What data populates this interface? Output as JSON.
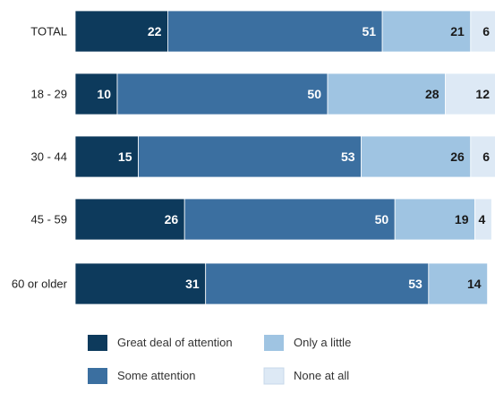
{
  "chart_data": {
    "type": "bar",
    "orientation": "horizontal",
    "stacked": true,
    "categories": [
      "TOTAL",
      "18 - 29",
      "30 - 44",
      "45 - 59",
      "60 or older"
    ],
    "series": [
      {
        "name": "Great deal of attention",
        "values": [
          22,
          10,
          15,
          26,
          31
        ],
        "color": "#0d3a5c",
        "label_color": "#ffffff"
      },
      {
        "name": "Some attention",
        "values": [
          51,
          50,
          53,
          50,
          53
        ],
        "color": "#3b6fa0",
        "label_color": "#ffffff"
      },
      {
        "name": "Only a little",
        "values": [
          21,
          28,
          26,
          19,
          14
        ],
        "color": "#9fc4e2",
        "label_color": "#1a1a1a"
      },
      {
        "name": "None at all",
        "values": [
          6,
          12,
          6,
          4,
          null
        ],
        "color": "#dde9f5",
        "label_color": "#1a1a1a"
      }
    ],
    "xlim": [
      0,
      100
    ],
    "grid": false,
    "legend_position": "bottom"
  }
}
